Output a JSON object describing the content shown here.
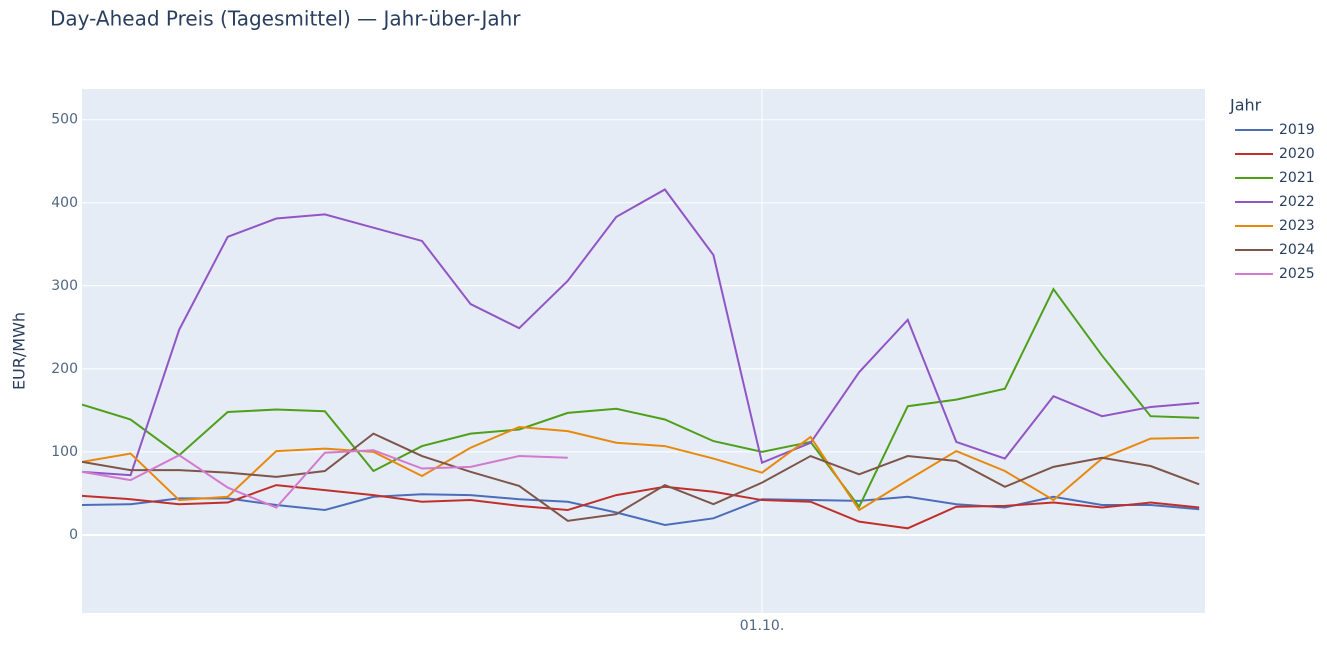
{
  "chart_data": {
    "type": "line",
    "title": "Day-Ahead Preis (Tagesmittel) — Jahr-über-Jahr",
    "y_label": "EUR/MWh",
    "legend_title": "Jahr",
    "x": [
      0,
      1,
      2,
      3,
      4,
      5,
      6,
      7,
      8,
      9,
      10,
      11,
      12,
      13,
      14,
      15,
      16,
      17,
      18,
      19,
      20,
      21,
      22,
      23
    ],
    "xlim": [
      0,
      23.12
    ],
    "xticks": [
      {
        "value": 14,
        "label": "01.10."
      }
    ],
    "ylim": [
      -94,
      537
    ],
    "yticks": [
      0,
      100,
      200,
      300,
      400,
      500
    ],
    "grid": true,
    "legend": "right",
    "series": [
      {
        "name": "2019",
        "color": "#4c6eba",
        "values": [
          36,
          37,
          44,
          44,
          36,
          30,
          46,
          49,
          48,
          43,
          40,
          27,
          12,
          20,
          43,
          42,
          41,
          46,
          37,
          33,
          46,
          36,
          36,
          31
        ]
      },
      {
        "name": "2020",
        "color": "#c0302b",
        "values": [
          47,
          43,
          37,
          39,
          60,
          54,
          48,
          40,
          42,
          35,
          30,
          48,
          58,
          52,
          42,
          40,
          16,
          8,
          34,
          35,
          39,
          33,
          39,
          33
        ]
      },
      {
        "name": "2021",
        "color": "#4e9f1a",
        "values": [
          157,
          139,
          96,
          148,
          151,
          149,
          77,
          107,
          122,
          127,
          147,
          152,
          139,
          113,
          100,
          112,
          34,
          155,
          163,
          176,
          296,
          216,
          143,
          141
        ]
      },
      {
        "name": "2022",
        "color": "#9155c5",
        "values": [
          76,
          72,
          247,
          359,
          381,
          386,
          370,
          354,
          278,
          249,
          306,
          383,
          416,
          337,
          87,
          111,
          196,
          259,
          112,
          92,
          167,
          143,
          154,
          159
        ]
      },
      {
        "name": "2023",
        "color": "#e8890c",
        "values": [
          88,
          98,
          42,
          46,
          101,
          104,
          100,
          71,
          105,
          130,
          125,
          111,
          107,
          92,
          75,
          118,
          30,
          66,
          101,
          77,
          42,
          92,
          116,
          117
        ]
      },
      {
        "name": "2024",
        "color": "#7f5549",
        "values": [
          88,
          78,
          78,
          75,
          70,
          77,
          122,
          95,
          76,
          59,
          17,
          25,
          60,
          37,
          63,
          95,
          73,
          95,
          89,
          58,
          82,
          93,
          83,
          61
        ]
      },
      {
        "name": "2025",
        "color": "#d37acf",
        "values": [
          76,
          66,
          96,
          57,
          33,
          99,
          102,
          80,
          82,
          95,
          93,
          null,
          null,
          null,
          null,
          null,
          null,
          null,
          null,
          null,
          null,
          null,
          null,
          null
        ]
      }
    ]
  }
}
